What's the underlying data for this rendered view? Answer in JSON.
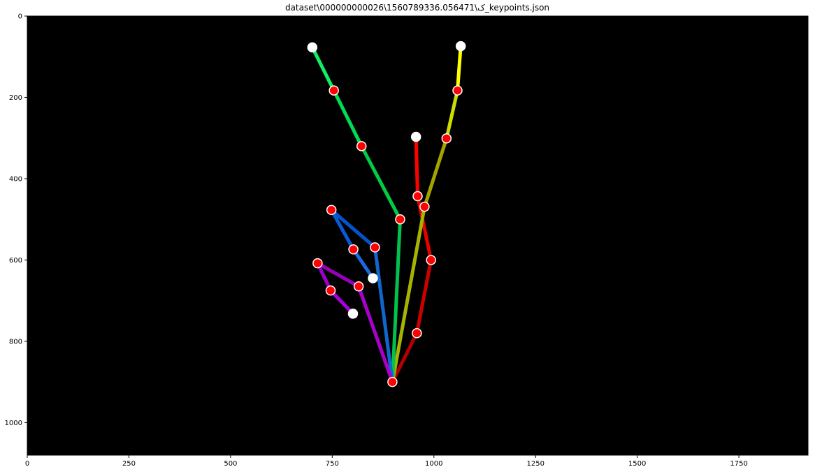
{
  "chart_data": {
    "type": "scatter",
    "title": "dataset\\ک\\1560789336.056471\\000000000026_keypoints.json",
    "xlabel": "",
    "ylabel": "",
    "xlim": [
      0,
      1920
    ],
    "ylim": [
      1080,
      0
    ],
    "y_inverted": true,
    "background": "#000000",
    "grid": false,
    "x_ticks": [
      0,
      250,
      500,
      750,
      1000,
      1250,
      1500,
      1750
    ],
    "y_ticks": [
      0,
      200,
      400,
      600,
      800,
      1000
    ],
    "keypoints": [
      {
        "id": 0,
        "x": 898,
        "y": 900,
        "color": "#ff0000"
      },
      {
        "id": 1,
        "x": 958,
        "y": 780,
        "color": "#ff0000"
      },
      {
        "id": 2,
        "x": 993,
        "y": 600,
        "color": "#ff0000"
      },
      {
        "id": 3,
        "x": 960,
        "y": 443,
        "color": "#ff0000"
      },
      {
        "id": 4,
        "x": 956,
        "y": 297,
        "color": "#ffffff"
      },
      {
        "id": 5,
        "x": 977,
        "y": 469,
        "color": "#ff0000"
      },
      {
        "id": 6,
        "x": 1031,
        "y": 301,
        "color": "#ff0000"
      },
      {
        "id": 7,
        "x": 1058,
        "y": 183,
        "color": "#ff0000"
      },
      {
        "id": 8,
        "x": 1066,
        "y": 74,
        "color": "#ffffff"
      },
      {
        "id": 9,
        "x": 917,
        "y": 500,
        "color": "#ff0000"
      },
      {
        "id": 10,
        "x": 822,
        "y": 320,
        "color": "#ff0000"
      },
      {
        "id": 11,
        "x": 754,
        "y": 183,
        "color": "#ff0000"
      },
      {
        "id": 12,
        "x": 701,
        "y": 77,
        "color": "#ffffff"
      },
      {
        "id": 13,
        "x": 855,
        "y": 569,
        "color": "#ff0000"
      },
      {
        "id": 14,
        "x": 748,
        "y": 477,
        "color": "#ff0000"
      },
      {
        "id": 15,
        "x": 802,
        "y": 574,
        "color": "#ff0000"
      },
      {
        "id": 16,
        "x": 850,
        "y": 645,
        "color": "#ffffff"
      },
      {
        "id": 17,
        "x": 815,
        "y": 665,
        "color": "#ff0000"
      },
      {
        "id": 18,
        "x": 714,
        "y": 608,
        "color": "#ff0000"
      },
      {
        "id": 19,
        "x": 746,
        "y": 675,
        "color": "#ff0000"
      },
      {
        "id": 20,
        "x": 801,
        "y": 732,
        "color": "#ffffff"
      }
    ],
    "bones": [
      {
        "from": 0,
        "to": 1,
        "color": "#b30000"
      },
      {
        "from": 1,
        "to": 2,
        "color": "#cc0000"
      },
      {
        "from": 2,
        "to": 3,
        "color": "#e60000"
      },
      {
        "from": 3,
        "to": 4,
        "color": "#ff0000"
      },
      {
        "from": 0,
        "to": 5,
        "color": "#a6b300"
      },
      {
        "from": 5,
        "to": 6,
        "color": "#a3a300"
      },
      {
        "from": 6,
        "to": 7,
        "color": "#ccdd00"
      },
      {
        "from": 7,
        "to": 8,
        "color": "#ffff00"
      },
      {
        "from": 0,
        "to": 9,
        "color": "#00c24d"
      },
      {
        "from": 9,
        "to": 10,
        "color": "#00cc44"
      },
      {
        "from": 10,
        "to": 11,
        "color": "#00dd55"
      },
      {
        "from": 11,
        "to": 12,
        "color": "#11ee66"
      },
      {
        "from": 0,
        "to": 13,
        "color": "#1166cc"
      },
      {
        "from": 13,
        "to": 14,
        "color": "#0055cc"
      },
      {
        "from": 14,
        "to": 15,
        "color": "#0a5ad8"
      },
      {
        "from": 15,
        "to": 16,
        "color": "#1a6ae0"
      },
      {
        "from": 0,
        "to": 17,
        "color": "#aa00cc"
      },
      {
        "from": 17,
        "to": 18,
        "color": "#9900bb"
      },
      {
        "from": 18,
        "to": 19,
        "color": "#9900cc"
      },
      {
        "from": 19,
        "to": 20,
        "color": "#aa00dd"
      }
    ]
  }
}
